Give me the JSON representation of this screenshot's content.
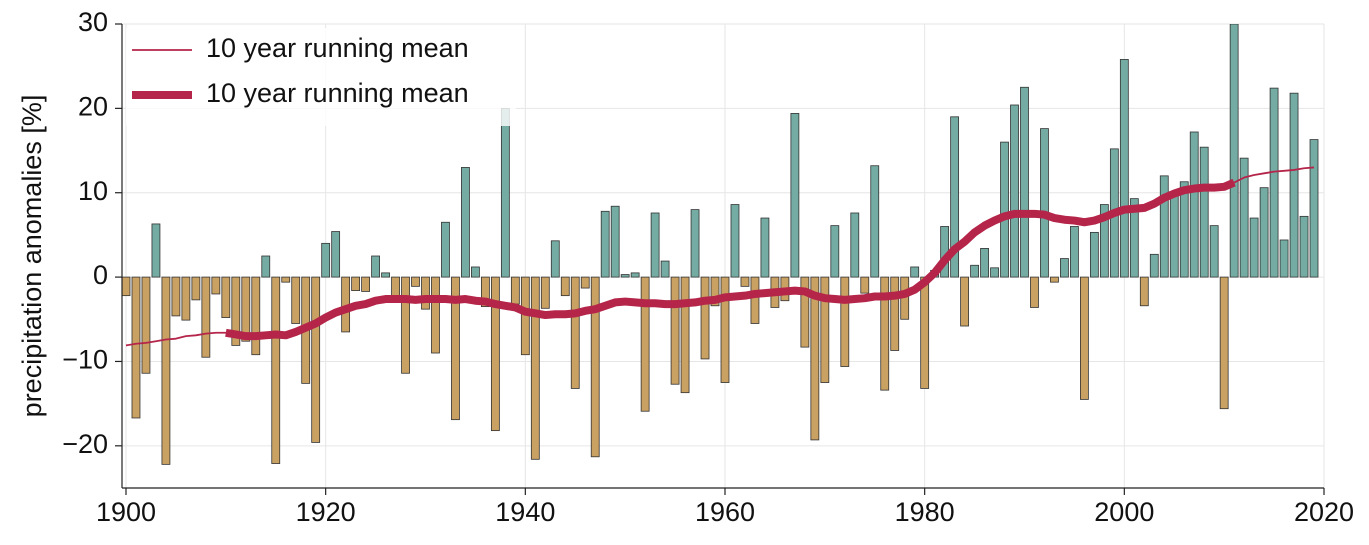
{
  "chart_data": {
    "type": "bar_line",
    "ylabel": "precipitation anomalies [%]",
    "x": [
      1900,
      1901,
      1902,
      1903,
      1904,
      1905,
      1906,
      1907,
      1908,
      1909,
      1910,
      1911,
      1912,
      1913,
      1914,
      1915,
      1916,
      1917,
      1918,
      1919,
      1920,
      1921,
      1922,
      1923,
      1924,
      1925,
      1926,
      1927,
      1928,
      1929,
      1930,
      1931,
      1932,
      1933,
      1934,
      1935,
      1936,
      1937,
      1938,
      1939,
      1940,
      1941,
      1942,
      1943,
      1944,
      1945,
      1946,
      1947,
      1948,
      1949,
      1950,
      1951,
      1952,
      1953,
      1954,
      1955,
      1956,
      1957,
      1958,
      1959,
      1960,
      1961,
      1962,
      1963,
      1964,
      1965,
      1966,
      1967,
      1968,
      1969,
      1970,
      1971,
      1972,
      1973,
      1974,
      1975,
      1976,
      1977,
      1978,
      1979,
      1980,
      1981,
      1982,
      1983,
      1984,
      1985,
      1986,
      1987,
      1988,
      1989,
      1990,
      1991,
      1992,
      1993,
      1994,
      1995,
      1996,
      1997,
      1998,
      1999,
      2000,
      2001,
      2002,
      2003,
      2004,
      2005,
      2006,
      2007,
      2008,
      2009,
      2010,
      2011,
      2012,
      2013,
      2014,
      2015,
      2016,
      2017,
      2018,
      2019
    ],
    "values": [
      -2.2,
      -16.7,
      -11.4,
      6.3,
      -22.2,
      -4.6,
      -5.1,
      -2.7,
      -9.5,
      -2.0,
      -4.8,
      -8.1,
      -7.6,
      -9.2,
      2.5,
      -22.1,
      -0.6,
      -5.5,
      -12.6,
      -19.6,
      4.0,
      5.4,
      -6.5,
      -1.6,
      -1.7,
      2.5,
      0.5,
      -2.2,
      -11.4,
      -1.1,
      -3.8,
      -9.0,
      6.5,
      -16.9,
      13.0,
      1.2,
      -3.5,
      -18.2,
      20.0,
      -3.2,
      -9.2,
      -21.6,
      -3.7,
      4.3,
      -2.2,
      -13.2,
      -1.3,
      -21.3,
      7.8,
      8.4,
      0.3,
      0.5,
      -15.9,
      7.6,
      1.9,
      -12.7,
      -13.7,
      8.0,
      -9.7,
      -3.4,
      -12.5,
      8.6,
      -1.1,
      -5.5,
      7.0,
      -3.6,
      -2.8,
      19.4,
      -8.3,
      -19.3,
      -12.5,
      6.1,
      -10.6,
      7.6,
      -1.9,
      13.2,
      -13.4,
      -8.7,
      -5.0,
      1.2,
      -13.2,
      0.8,
      6.0,
      19.0,
      -5.8,
      1.4,
      3.4,
      1.1,
      16.0,
      20.4,
      22.5,
      -3.6,
      17.6,
      -0.6,
      2.2,
      6.0,
      -14.5,
      5.3,
      8.6,
      15.2,
      25.8,
      9.3,
      -3.4,
      2.7,
      12.0,
      9.7,
      11.3,
      17.2,
      15.4,
      6.1,
      -15.6,
      30.0,
      14.1,
      7.0,
      10.6,
      22.4,
      4.4,
      21.8,
      7.2,
      16.3
    ],
    "positive_color": "#74aba3",
    "negative_color": "#c9a163",
    "edge_color": "#333333",
    "series": [
      {
        "name": "10 year running mean",
        "color": "#b5254a",
        "width": 1.8,
        "values": [
          -8.1,
          -7.9,
          -7.8,
          -7.6,
          -7.4,
          -7.3,
          -7.0,
          -6.9,
          -6.7,
          -6.6,
          -6.6,
          -6.8,
          -7.0,
          -7.0,
          -6.9,
          -6.8,
          -6.9,
          -6.5,
          -6.0,
          -5.5,
          -4.8,
          -4.2,
          -3.8,
          -3.4,
          -3.2,
          -2.8,
          -2.6,
          -2.6,
          -2.6,
          -2.7,
          -2.6,
          -2.6,
          -2.6,
          -2.7,
          -2.6,
          -2.8,
          -2.9,
          -3.2,
          -3.4,
          -3.6,
          -4.1,
          -4.3,
          -4.5,
          -4.4,
          -4.4,
          -4.3,
          -4.0,
          -3.8,
          -3.4,
          -3.0,
          -2.9,
          -3.0,
          -3.1,
          -3.1,
          -3.2,
          -3.2,
          -3.1,
          -3.0,
          -2.8,
          -2.7,
          -2.4,
          -2.3,
          -2.2,
          -2.0,
          -1.9,
          -1.8,
          -1.7,
          -1.6,
          -1.7,
          -2.2,
          -2.5,
          -2.6,
          -2.7,
          -2.6,
          -2.5,
          -2.3,
          -2.3,
          -2.2,
          -2.0,
          -1.5,
          -0.6,
          0.5,
          2.0,
          3.3,
          4.2,
          5.3,
          6.1,
          6.7,
          7.2,
          7.5,
          7.5,
          7.5,
          7.4,
          7.0,
          6.8,
          6.7,
          6.5,
          6.7,
          7.1,
          7.6,
          8.0,
          8.1,
          8.2,
          8.7,
          9.4,
          9.9,
          10.3,
          10.5,
          10.6,
          10.6,
          10.7,
          11.2,
          11.8,
          12.1,
          12.3,
          12.5,
          12.6,
          12.7,
          12.9,
          13.0
        ]
      },
      {
        "name": "10 year running mean",
        "color": "#b5254a",
        "width": 8,
        "values": [
          null,
          null,
          null,
          null,
          null,
          null,
          null,
          null,
          null,
          null,
          -6.6,
          -6.8,
          -7.0,
          -7.0,
          -6.9,
          -6.8,
          -6.9,
          -6.5,
          -6.0,
          -5.5,
          -4.8,
          -4.2,
          -3.8,
          -3.4,
          -3.2,
          -2.8,
          -2.6,
          -2.6,
          -2.6,
          -2.7,
          -2.6,
          -2.6,
          -2.6,
          -2.7,
          -2.6,
          -2.8,
          -2.9,
          -3.2,
          -3.4,
          -3.6,
          -4.1,
          -4.3,
          -4.5,
          -4.4,
          -4.4,
          -4.3,
          -4.0,
          -3.8,
          -3.4,
          -3.0,
          -2.9,
          -3.0,
          -3.1,
          -3.1,
          -3.2,
          -3.2,
          -3.1,
          -3.0,
          -2.8,
          -2.7,
          -2.4,
          -2.3,
          -2.2,
          -2.0,
          -1.9,
          -1.8,
          -1.7,
          -1.6,
          -1.7,
          -2.2,
          -2.5,
          -2.6,
          -2.7,
          -2.6,
          -2.5,
          -2.3,
          -2.3,
          -2.2,
          -2.0,
          -1.5,
          -0.6,
          0.5,
          2.0,
          3.3,
          4.2,
          5.3,
          6.1,
          6.7,
          7.2,
          7.5,
          7.5,
          7.5,
          7.4,
          7.0,
          6.8,
          6.7,
          6.5,
          6.7,
          7.1,
          7.6,
          8.0,
          8.1,
          8.2,
          8.7,
          9.4,
          9.9,
          10.3,
          10.5,
          10.6,
          10.6,
          10.7,
          11.2,
          null,
          null,
          null,
          null,
          null,
          null,
          null,
          null
        ]
      }
    ],
    "xlim": [
      1899.6,
      2020
    ],
    "ylim": [
      -25,
      30
    ],
    "xticks": [
      1900,
      1920,
      1940,
      1960,
      1980,
      2000,
      2020
    ],
    "yticks": [
      {
        "value": -20,
        "label": "−20"
      },
      {
        "value": -10,
        "label": "−10"
      },
      0,
      10,
      20,
      30
    ],
    "grid": true,
    "legend": "upper left"
  }
}
